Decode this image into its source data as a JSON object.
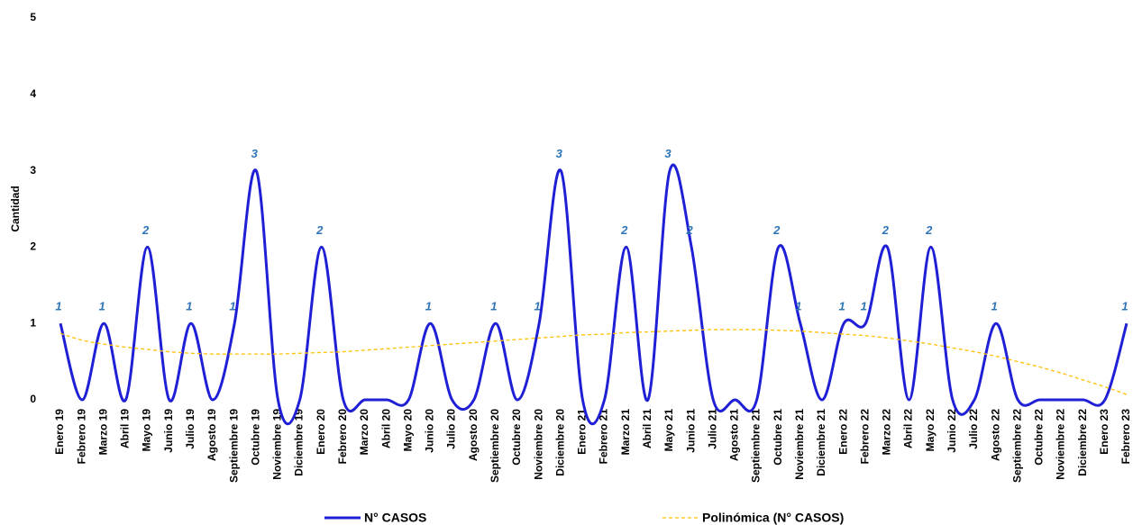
{
  "chart_data": {
    "type": "line",
    "y_label": "Cantidad",
    "categories": [
      "Enero 19",
      "Febrero 19",
      "Marzo 19",
      "Abril 19",
      "Mayo 19",
      "Junio 19",
      "Julio 19",
      "Agosto 19",
      "Septiembre 19",
      "Octubre 19",
      "Noviembre 19",
      "Diciembre 19",
      "Enero 20",
      "Febrero 20",
      "Marzo 20",
      "Abril 20",
      "Mayo 20",
      "Junio 20",
      "Julio 20",
      "Agosto 20",
      "Septiembre 20",
      "Octubre 20",
      "Noviembre 20",
      "Diciembre 20",
      "Enero 21",
      "Febrero 21",
      "Marzo 21",
      "Abril 21",
      "Mayo 21",
      "Junio 21",
      "Julio 21",
      "Agosto 21",
      "Septiembre 21",
      "Octubre 21",
      "Noviembre 21",
      "Diciembre 21",
      "Enero 22",
      "Febrero 22",
      "Marzo 22",
      "Abril 22",
      "Mayo 22",
      "Junio 22",
      "Julio 22",
      "Agosto 22",
      "Septiembre 22",
      "Octubre 22",
      "Noviembre 22",
      "Diciembre 22",
      "Enero 23",
      "Febrero 23"
    ],
    "series": [
      {
        "name": "N° CASOS",
        "color": "#1f1fd6",
        "data_labels": true,
        "values": [
          1,
          0,
          1,
          0,
          2,
          0,
          1,
          0,
          1,
          3,
          0,
          0,
          2,
          0,
          0,
          0,
          0,
          1,
          0,
          0,
          1,
          0,
          1,
          3,
          0,
          0,
          2,
          0,
          3,
          2,
          0,
          0,
          0,
          2,
          1,
          0,
          1,
          1,
          2,
          0,
          2,
          0,
          0,
          1,
          0,
          0,
          0,
          0,
          0,
          1
        ]
      },
      {
        "name": "Polinómica (N° CASOS)",
        "color": "#ffc000",
        "dashed": true,
        "values": [
          0.87,
          0.78,
          0.73,
          0.69,
          0.66,
          0.63,
          0.61,
          0.6,
          0.6,
          0.6,
          0.6,
          0.61,
          0.62,
          0.63,
          0.65,
          0.67,
          0.69,
          0.71,
          0.73,
          0.75,
          0.77,
          0.79,
          0.81,
          0.83,
          0.85,
          0.86,
          0.88,
          0.89,
          0.9,
          0.91,
          0.92,
          0.92,
          0.92,
          0.91,
          0.9,
          0.88,
          0.86,
          0.84,
          0.81,
          0.77,
          0.73,
          0.68,
          0.63,
          0.57,
          0.5,
          0.43,
          0.35,
          0.26,
          0.17,
          0.07
        ]
      }
    ],
    "ylim": [
      0,
      5
    ],
    "yticks": [
      0,
      1,
      2,
      3,
      4,
      5
    ],
    "grid": false
  }
}
